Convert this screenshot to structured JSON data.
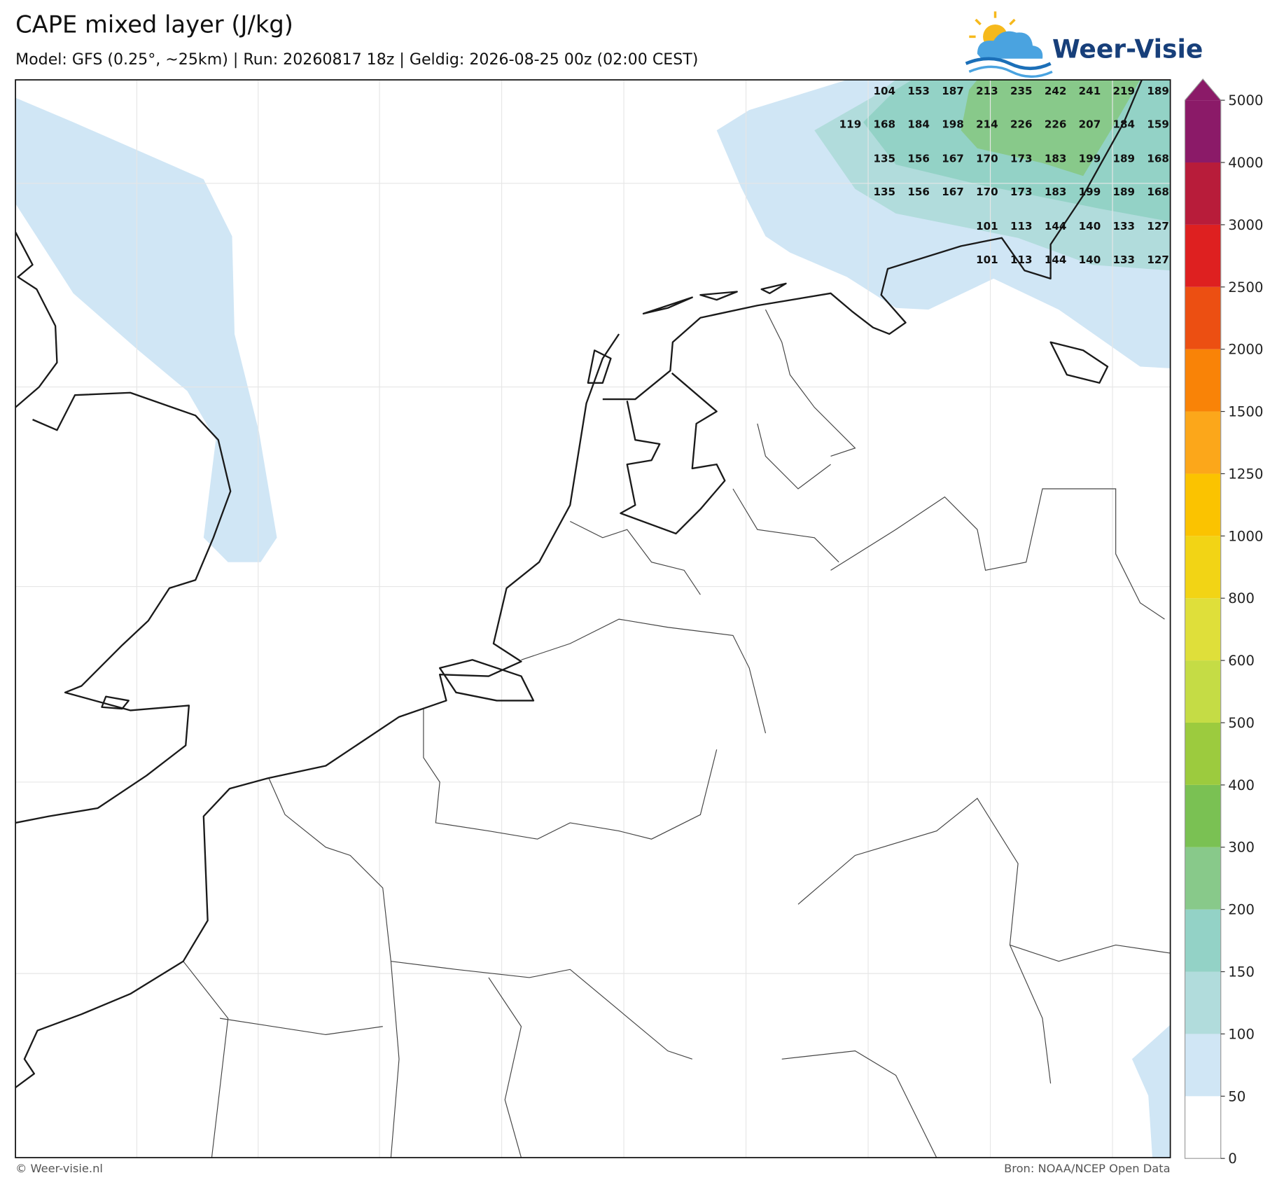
{
  "header": {
    "title": "CAPE mixed layer (J/kg)",
    "subtitle": "Model: GFS (0.25°, ~25km)  |  Run: 20260817 18z  |  Geldig: 2026-08-25 00z (02:00 CEST)",
    "logo": "Weer-Visie"
  },
  "colorbar": {
    "ticks": [
      0,
      50,
      100,
      150,
      200,
      300,
      400,
      500,
      600,
      800,
      1000,
      1250,
      1500,
      2000,
      2500,
      3000,
      4000,
      5000
    ],
    "colors": [
      "#ffffff",
      "#d0e6f5",
      "#b1dcdc",
      "#93d2c6",
      "#88c98a",
      "#7ac153",
      "#9ccb3e",
      "#c5dc45",
      "#dfdf3a",
      "#f2d415",
      "#fbc300",
      "#fca71a",
      "#f98307",
      "#ec4f12",
      "#de2020",
      "#b81c3a",
      "#8b1a68"
    ]
  },
  "labels": {
    "rows": [
      [
        104,
        153,
        187,
        213,
        235,
        242,
        241,
        219,
        189
      ],
      [
        119,
        168,
        184,
        198,
        214,
        226,
        226,
        207,
        184,
        159
      ],
      [
        135,
        156,
        167,
        170,
        173,
        183,
        199,
        189,
        168
      ],
      [
        135,
        156,
        167,
        170,
        173,
        183,
        199,
        189,
        168
      ],
      [
        101,
        113,
        144,
        140,
        133,
        127
      ],
      [
        101,
        113,
        144,
        140,
        133,
        127
      ]
    ]
  },
  "footer": {
    "left": "© Weer-visie.nl",
    "right": "Bron: NOAA/NCEP Open Data"
  }
}
